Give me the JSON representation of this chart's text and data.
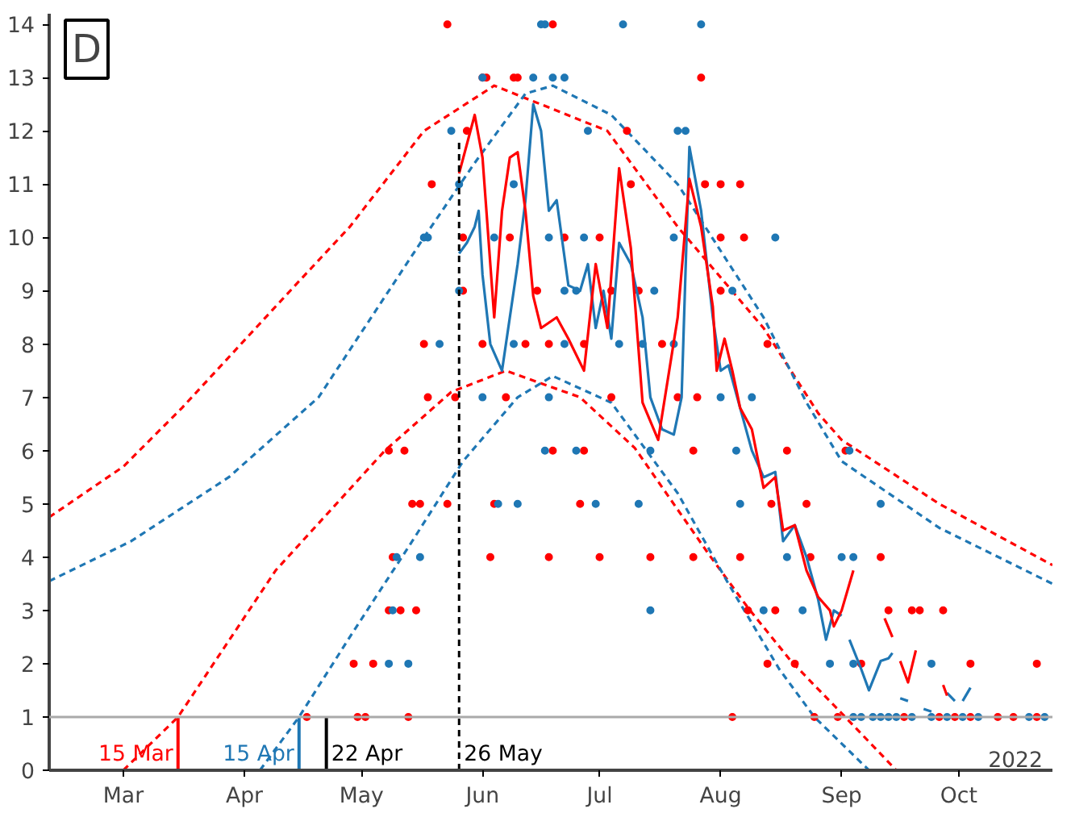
{
  "chart_data": {
    "type": "line",
    "xlim": [
      "2022-02-10",
      "2022-10-25"
    ],
    "ylim": [
      0,
      14.2
    ],
    "xticks": [
      {
        "value": "2022-03-01",
        "label": "Mar"
      },
      {
        "value": "2022-04-01",
        "label": "Apr"
      },
      {
        "value": "2022-05-01",
        "label": "May"
      },
      {
        "value": "2022-06-01",
        "label": "Jun"
      },
      {
        "value": "2022-07-01",
        "label": "Jul"
      },
      {
        "value": "2022-08-01",
        "label": "Aug"
      },
      {
        "value": "2022-09-01",
        "label": "Sep"
      },
      {
        "value": "2022-10-01",
        "label": "Oct"
      }
    ],
    "yticks": [
      0,
      1,
      2,
      3,
      4,
      5,
      6,
      7,
      8,
      9,
      10,
      11,
      12,
      13,
      14
    ],
    "grid": false,
    "annotations": [
      "D",
      "2022"
    ],
    "ref_lines": [
      {
        "axis": "y",
        "value": 1,
        "label": null,
        "color": "#aaaaaa"
      },
      {
        "axis": "x",
        "value": "2022-03-15",
        "label": "15 Mar",
        "color": "#ff0000",
        "line_style": "solid"
      },
      {
        "axis": "x",
        "value": "2022-04-15",
        "label": "15 Apr",
        "color": "#1f77b4",
        "line_style": "solid"
      },
      {
        "axis": "x",
        "value": "2022-04-22",
        "label": "22 Apr",
        "line_style": "solid"
      },
      {
        "axis": "x",
        "value": "2022-05-26",
        "label": "26 May",
        "line_style": "dashed"
      }
    ],
    "series": [
      {
        "line_style": "dashed",
        "color": "#ff0000",
        "x": [
          "2022-02-10",
          "2022-03-01",
          "2022-03-16",
          "2022-04-14",
          "2022-04-28",
          "2022-05-17",
          "2022-06-04",
          "2022-07-03",
          "2022-07-21",
          "2022-08-12",
          "2022-08-26",
          "2022-09-01",
          "2022-09-26",
          "2022-10-25"
        ],
        "values": [
          4.75,
          5.7,
          6.8,
          9.1,
          10.2,
          12.0,
          12.85,
          12.0,
          10.2,
          8.3,
          6.7,
          6.2,
          5.0,
          3.85
        ]
      },
      {
        "line_style": "dashed",
        "color": "#1f77b4",
        "x": [
          "2022-02-10",
          "2022-03-03",
          "2022-03-28",
          "2022-04-20",
          "2022-05-17",
          "2022-05-30",
          "2022-06-12",
          "2022-06-19",
          "2022-07-04",
          "2022-07-21",
          "2022-08-12",
          "2022-08-23",
          "2022-09-01",
          "2022-09-26",
          "2022-10-25"
        ],
        "values": [
          3.55,
          4.3,
          5.5,
          7.0,
          10.0,
          11.4,
          12.7,
          12.85,
          12.3,
          11.0,
          8.5,
          6.9,
          5.8,
          4.55,
          3.5
        ]
      },
      {
        "line_style": "dashed",
        "color": "#ff0000",
        "x": [
          "2022-03-01",
          "2022-03-15",
          "2022-04-09",
          "2022-05-07",
          "2022-05-24",
          "2022-06-07",
          "2022-06-26",
          "2022-07-10",
          "2022-07-29",
          "2022-08-08",
          "2022-08-19",
          "2022-09-01",
          "2022-09-15"
        ],
        "values": [
          0,
          1.0,
          3.75,
          6.0,
          7.1,
          7.5,
          7.0,
          6.05,
          4.05,
          3.05,
          2.05,
          1.07,
          0
        ]
      },
      {
        "line_style": "dashed",
        "color": "#1f77b4",
        "x": [
          "2022-04-05",
          "2022-04-15",
          "2022-04-28",
          "2022-05-14",
          "2022-05-27",
          "2022-06-10",
          "2022-06-19",
          "2022-07-04",
          "2022-07-21",
          "2022-08-03",
          "2022-08-16",
          "2022-08-25",
          "2022-09-08"
        ],
        "values": [
          0,
          1.0,
          2.5,
          4.3,
          5.8,
          7.0,
          7.4,
          6.9,
          5.2,
          3.5,
          1.9,
          1.0,
          0
        ]
      },
      {
        "type": "scatter",
        "marker": "circle",
        "color": "#ff0000",
        "x": [
          "2022-05-23",
          "2022-06-19",
          "2022-06-01",
          "2022-06-02",
          "2022-06-09",
          "2022-06-10",
          "2022-07-27",
          "2022-05-28",
          "2022-07-08",
          "2022-05-19",
          "2022-07-09",
          "2022-07-28",
          "2022-08-01",
          "2022-08-06",
          "2022-05-27",
          "2022-06-08",
          "2022-06-22",
          "2022-07-01",
          "2022-08-01",
          "2022-08-07",
          "2022-05-27",
          "2022-06-15",
          "2022-07-04",
          "2022-07-11",
          "2022-08-01",
          "2022-05-17",
          "2022-06-01",
          "2022-06-12",
          "2022-06-18",
          "2022-06-27",
          "2022-07-17",
          "2022-08-13",
          "2022-05-18",
          "2022-05-25",
          "2022-06-07",
          "2022-07-04",
          "2022-07-21",
          "2022-07-26",
          "2022-05-08",
          "2022-05-12",
          "2022-06-19",
          "2022-06-27",
          "2022-07-25",
          "2022-08-18",
          "2022-09-02",
          "2022-05-14",
          "2022-05-16",
          "2022-05-23",
          "2022-06-04",
          "2022-06-26",
          "2022-08-14",
          "2022-08-23",
          "2022-05-09",
          "2022-06-03",
          "2022-06-18",
          "2022-07-01",
          "2022-07-14",
          "2022-07-25",
          "2022-08-06",
          "2022-08-24",
          "2022-09-11",
          "2022-05-08",
          "2022-05-11",
          "2022-05-15",
          "2022-08-08",
          "2022-08-15",
          "2022-09-13",
          "2022-09-19",
          "2022-09-21",
          "2022-09-27",
          "2022-04-29",
          "2022-05-04",
          "2022-08-13",
          "2022-08-20",
          "2022-09-06",
          "2022-10-04",
          "2022-10-21",
          "2022-04-17",
          "2022-04-30",
          "2022-05-02",
          "2022-05-13",
          "2022-08-04",
          "2022-08-25",
          "2022-08-31",
          "2022-09-17",
          "2022-09-26",
          "2022-09-30",
          "2022-10-04",
          "2022-10-11",
          "2022-10-15",
          "2022-10-21"
        ],
        "values": [
          14,
          14,
          13,
          13,
          13,
          13,
          13,
          12,
          12,
          11,
          11,
          11,
          11,
          11,
          10,
          10,
          10,
          10,
          10,
          10,
          9,
          9,
          9,
          9,
          9,
          8,
          8,
          8,
          8,
          8,
          8,
          8,
          7,
          7,
          7,
          7,
          7,
          7,
          6,
          6,
          6,
          6,
          6,
          6,
          6,
          5,
          5,
          5,
          5,
          5,
          5,
          5,
          4,
          4,
          4,
          4,
          4,
          4,
          4,
          4,
          4,
          3,
          3,
          3,
          3,
          3,
          3,
          3,
          3,
          3,
          2,
          2,
          2,
          2,
          2,
          2,
          2,
          1,
          1,
          1,
          1,
          1,
          1,
          1,
          1,
          1,
          1,
          1,
          1,
          1,
          1
        ]
      },
      {
        "type": "scatter",
        "marker": "circle",
        "color": "#1f77b4",
        "x": [
          "2022-06-16",
          "2022-06-17",
          "2022-07-07",
          "2022-07-27",
          "2022-06-01",
          "2022-06-14",
          "2022-06-19",
          "2022-06-22",
          "2022-05-24",
          "2022-06-28",
          "2022-07-21",
          "2022-07-23",
          "2022-05-26",
          "2022-06-09",
          "2022-05-17",
          "2022-05-18",
          "2022-06-04",
          "2022-06-18",
          "2022-06-27",
          "2022-07-20",
          "2022-08-15",
          "2022-05-26",
          "2022-06-22",
          "2022-06-25",
          "2022-07-15",
          "2022-08-04",
          "2022-05-21",
          "2022-06-09",
          "2022-06-22",
          "2022-07-06",
          "2022-07-12",
          "2022-07-20",
          "2022-06-01",
          "2022-06-18",
          "2022-08-01",
          "2022-08-09",
          "2022-06-17",
          "2022-06-25",
          "2022-07-14",
          "2022-08-05",
          "2022-09-03",
          "2022-06-05",
          "2022-06-10",
          "2022-06-30",
          "2022-07-11",
          "2022-08-06",
          "2022-09-11",
          "2022-05-10",
          "2022-05-16",
          "2022-08-18",
          "2022-09-01",
          "2022-09-04",
          "2022-05-09",
          "2022-07-14",
          "2022-08-12",
          "2022-08-22",
          "2022-05-08",
          "2022-05-13",
          "2022-08-29",
          "2022-09-04",
          "2022-09-24",
          "2022-09-04",
          "2022-09-06",
          "2022-09-09",
          "2022-09-11",
          "2022-09-13",
          "2022-09-15",
          "2022-09-19",
          "2022-09-24",
          "2022-09-28",
          "2022-10-02",
          "2022-10-06",
          "2022-10-19",
          "2022-10-23"
        ],
        "values": [
          14,
          14,
          14,
          14,
          13,
          13,
          13,
          13,
          12,
          12,
          12,
          12,
          11,
          11,
          10,
          10,
          10,
          10,
          10,
          10,
          10,
          9,
          9,
          9,
          9,
          9,
          8,
          8,
          8,
          8,
          8,
          8,
          7,
          7,
          7,
          7,
          6,
          6,
          6,
          6,
          6,
          5,
          5,
          5,
          5,
          5,
          5,
          4,
          4,
          4,
          4,
          4,
          3,
          3,
          3,
          3,
          2,
          2,
          2,
          2,
          2,
          1,
          1,
          1,
          1,
          1,
          1,
          1,
          1,
          1,
          1,
          1,
          1,
          1
        ]
      },
      {
        "line_style": "solid",
        "color": "#1f77b4",
        "x": [
          "2022-05-26",
          "2022-05-28",
          "2022-05-30",
          "2022-05-31",
          "2022-06-01",
          "2022-06-03",
          "2022-06-06",
          "2022-06-08",
          "2022-06-10",
          "2022-06-12",
          "2022-06-14",
          "2022-06-16",
          "2022-06-18",
          "2022-06-20",
          "2022-06-23",
          "2022-06-26",
          "2022-06-28",
          "2022-06-30",
          "2022-07-02",
          "2022-07-04",
          "2022-07-06",
          "2022-07-09",
          "2022-07-12",
          "2022-07-14",
          "2022-07-17",
          "2022-07-20",
          "2022-07-22",
          "2022-07-24",
          "2022-07-27",
          "2022-07-30",
          "2022-08-01",
          "2022-08-03",
          "2022-08-06",
          "2022-08-09",
          "2022-08-12",
          "2022-08-15",
          "2022-08-17",
          "2022-08-20",
          "2022-08-23",
          "2022-08-26",
          "2022-08-28",
          "2022-08-30",
          "2022-09-01",
          "2022-09-02",
          "2022-09-03",
          "2022-09-06",
          "2022-09-08",
          "2022-09-11",
          "2022-09-13",
          "2022-09-14",
          "2022-09-15",
          "2022-09-16",
          "2022-09-18",
          "2022-09-20",
          "2022-09-22",
          "2022-09-24",
          "2022-09-26",
          "2022-09-28",
          "2022-09-30",
          "2022-10-01",
          "2022-10-02",
          "2022-10-04"
        ],
        "values": [
          9.7,
          9.9,
          10.2,
          10.5,
          9.3,
          8.0,
          7.5,
          8.5,
          9.5,
          10.7,
          12.5,
          12.0,
          10.5,
          10.7,
          9.1,
          9.0,
          9.5,
          8.3,
          9.0,
          8.1,
          9.9,
          9.5,
          8.5,
          7.0,
          6.4,
          6.3,
          7.0,
          11.7,
          10.5,
          8.5,
          7.5,
          7.6,
          6.8,
          6.0,
          5.5,
          5.6,
          4.3,
          4.6,
          4.0,
          3.2,
          2.45,
          3.0,
          2.9,
          null,
          2.45,
          1.9,
          1.5,
          2.05,
          2.1,
          2.2,
          null,
          1.35,
          1.3,
          null,
          1.15,
          1.1,
          null,
          1.45,
          1.3,
          null,
          1.3,
          1.55
        ]
      },
      {
        "line_style": "solid",
        "color": "#ff0000",
        "x": [
          "2022-05-26",
          "2022-05-30",
          "2022-06-01",
          "2022-06-04",
          "2022-06-06",
          "2022-06-08",
          "2022-06-10",
          "2022-06-12",
          "2022-06-14",
          "2022-06-16",
          "2022-06-20",
          "2022-06-23",
          "2022-06-27",
          "2022-06-30",
          "2022-07-03",
          "2022-07-06",
          "2022-07-09",
          "2022-07-12",
          "2022-07-16",
          "2022-07-21",
          "2022-07-24",
          "2022-07-27",
          "2022-07-30",
          "2022-07-31",
          "2022-08-02",
          "2022-08-04",
          "2022-08-06",
          "2022-08-09",
          "2022-08-12",
          "2022-08-15",
          "2022-08-17",
          "2022-08-20",
          "2022-08-23",
          "2022-08-26",
          "2022-08-29",
          "2022-08-30",
          "2022-09-01",
          "2022-09-04",
          "2022-09-08",
          "2022-09-12",
          "2022-09-14",
          "2022-09-15",
          "2022-09-16",
          "2022-09-18",
          "2022-09-20",
          "2022-09-23",
          "2022-09-27",
          "2022-09-28"
        ],
        "values": [
          11.2,
          12.3,
          11.5,
          8.5,
          10.5,
          11.5,
          11.6,
          10.5,
          8.9,
          8.3,
          8.5,
          8.1,
          7.5,
          9.5,
          8.3,
          11.3,
          9.8,
          6.9,
          6.2,
          8.5,
          11.1,
          10.2,
          8.7,
          7.5,
          8.1,
          7.5,
          6.8,
          6.4,
          5.3,
          5.5,
          4.5,
          4.6,
          3.75,
          3.25,
          3.0,
          2.7,
          3.0,
          3.75,
          null,
          2.85,
          2.5,
          null,
          2.05,
          1.65,
          2.25,
          null,
          1.6,
          1.4
        ]
      }
    ]
  }
}
